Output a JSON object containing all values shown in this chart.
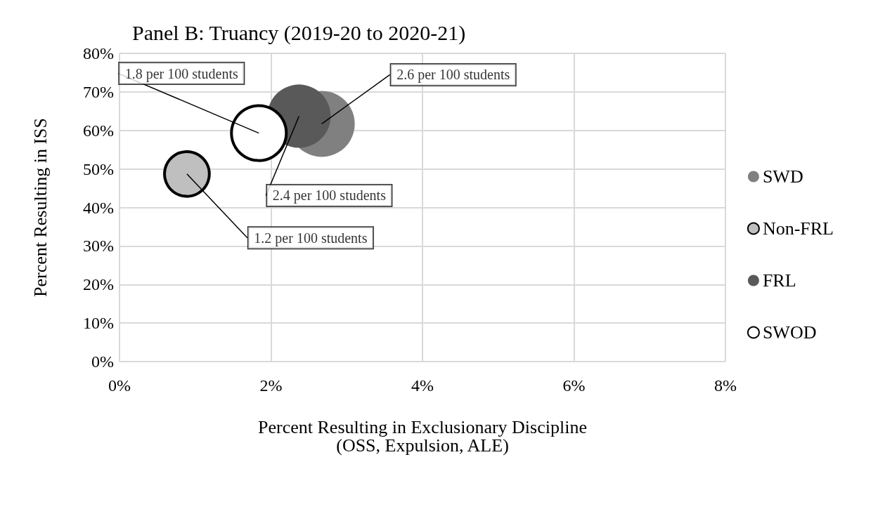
{
  "chart_data": {
    "type": "bubble",
    "title": "Panel B: Truancy (2019-20 to 2020-21)",
    "xlabel": "Percent Resulting in Exclusionary Discipline\n(OSS, Expulsion, ALE)",
    "ylabel": "Percent Resulting in ISS",
    "xlim": [
      0,
      8
    ],
    "xticks": [
      {
        "value": 0,
        "label": "0%"
      },
      {
        "value": 2,
        "label": "2%"
      },
      {
        "value": 4,
        "label": "4%"
      },
      {
        "value": 6,
        "label": "6%"
      },
      {
        "value": 8,
        "label": "8%"
      }
    ],
    "ylim": [
      0,
      80
    ],
    "yticks": [
      {
        "value": 0,
        "label": "0%"
      },
      {
        "value": 10,
        "label": "10%"
      },
      {
        "value": 20,
        "label": "20%"
      },
      {
        "value": 30,
        "label": "30%"
      },
      {
        "value": 40,
        "label": "40%"
      },
      {
        "value": 50,
        "label": "50%"
      },
      {
        "value": 60,
        "label": "60%"
      },
      {
        "value": 70,
        "label": "70%"
      },
      {
        "value": 80,
        "label": "80%"
      }
    ],
    "grid": true,
    "legend": "right",
    "series": [
      {
        "name": "SWD",
        "color": "#808080",
        "x": [
          2.67
        ],
        "values": [
          61.7
        ],
        "sizes": [
          1
        ]
      },
      {
        "name": "Non-FRL",
        "color": "#bfbfbf",
        "x": [
          0.89
        ],
        "values": [
          48.7
        ],
        "sizes": [
          0.46
        ]
      },
      {
        "name": "FRL",
        "color": "#595959",
        "x": [
          2.37
        ],
        "values": [
          63.7
        ],
        "sizes": [
          0.92
        ]
      },
      {
        "name": "SWOD",
        "color": "#ffffff",
        "x": [
          1.84
        ],
        "values": [
          59.3
        ],
        "sizes": [
          0.69
        ]
      }
    ],
    "annotations": [
      {
        "text": "1.8 per 100 students",
        "x": 1.84,
        "y": 59.3
      },
      {
        "text": "2.6 per 100 students",
        "x": 2.67,
        "y": 61.7
      },
      {
        "text": "2.4 per 100 students",
        "x": 2.37,
        "y": 63.7
      },
      {
        "text": "1.2 per 100 students",
        "x": 0.89,
        "y": 48.7
      }
    ]
  }
}
